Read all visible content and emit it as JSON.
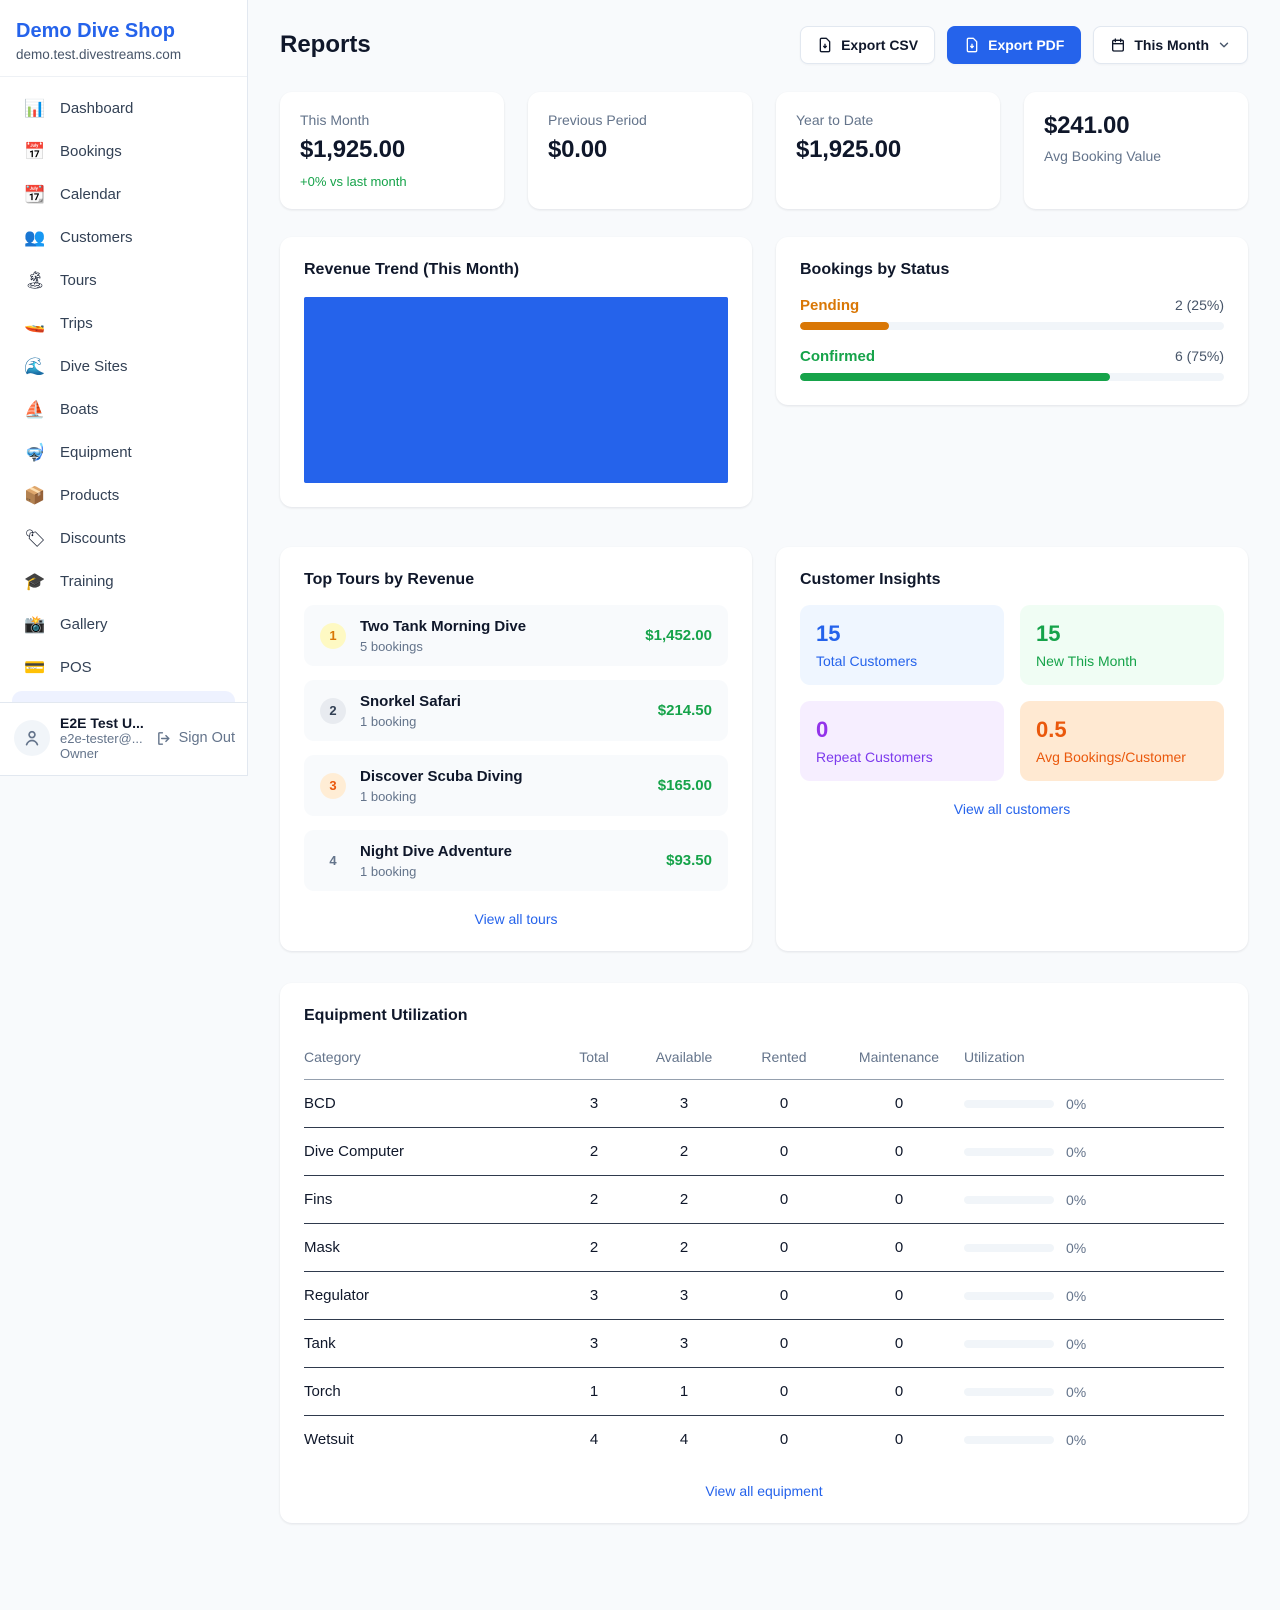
{
  "accent_color": "#2563eb",
  "sidebar": {
    "brand": {
      "name": "Demo Dive Shop",
      "domain": "demo.test.divestreams.com"
    },
    "nav": [
      {
        "icon": "📊",
        "icon_name": "bar-chart-icon",
        "label": "Dashboard"
      },
      {
        "icon": "📅",
        "icon_name": "calendar-date-icon",
        "label": "Bookings"
      },
      {
        "icon": "📆",
        "icon_name": "tear-off-calendar-icon",
        "label": "Calendar"
      },
      {
        "icon": "👥",
        "icon_name": "people-icon",
        "label": "Customers"
      },
      {
        "icon": "🏝",
        "icon_name": "island-icon",
        "label": "Tours"
      },
      {
        "icon": "🚤",
        "icon_name": "speedboat-icon",
        "label": "Trips"
      },
      {
        "icon": "🌊",
        "icon_name": "wave-icon",
        "label": "Dive Sites"
      },
      {
        "icon": "⛵",
        "icon_name": "sailboat-icon",
        "label": "Boats"
      },
      {
        "icon": "🤿",
        "icon_name": "diving-mask-icon",
        "label": "Equipment"
      },
      {
        "icon": "📦",
        "icon_name": "package-icon",
        "label": "Products"
      },
      {
        "icon": "🏷",
        "icon_name": "tag-icon",
        "label": "Discounts"
      },
      {
        "icon": "🎓",
        "icon_name": "graduation-cap-icon",
        "label": "Training"
      },
      {
        "icon": "📸",
        "icon_name": "camera-icon",
        "label": "Gallery"
      },
      {
        "icon": "💳",
        "icon_name": "credit-card-icon",
        "label": "POS"
      }
    ],
    "user": {
      "name": "E2E Test U...",
      "email": "e2e-tester@...",
      "role": "Owner",
      "sign_out_label": "Sign Out"
    }
  },
  "header": {
    "title": "Reports",
    "export_csv_label": "Export CSV",
    "export_pdf_label": "Export PDF",
    "period_label": "This Month"
  },
  "stats": [
    {
      "label": "This Month",
      "value": "$1,925.00",
      "delta": "+0% vs last month"
    },
    {
      "label": "Previous Period",
      "value": "$0.00"
    },
    {
      "label": "Year to Date",
      "value": "$1,925.00"
    },
    {
      "label": "Avg Booking Value",
      "value": "$241.00"
    }
  ],
  "revenue_trend": {
    "title": "Revenue Trend (This Month)"
  },
  "chart_data": {
    "type": "bar",
    "title": "Revenue Trend (This Month)",
    "categories": [
      "This Month"
    ],
    "values": [
      1925
    ],
    "bar_color": "#2563eb",
    "note": "single bar fills entire plot area, no axes or gridlines shown",
    "xlabel": "",
    "ylabel": ""
  },
  "bookings_by_status": {
    "title": "Bookings by Status",
    "rows": [
      {
        "label": "Pending",
        "value": "2 (25%)",
        "count": 2,
        "pct": 25,
        "bar_pct": 21,
        "color": "#d97706"
      },
      {
        "label": "Confirmed",
        "value": "6 (75%)",
        "count": 6,
        "pct": 75,
        "bar_pct": 73,
        "color": "#16a34a"
      }
    ]
  },
  "top_tours": {
    "title": "Top Tours by Revenue",
    "items": [
      {
        "rank": "1",
        "name": "Two Tank Morning Dive",
        "bookings": "5 bookings",
        "amount": "$1,452.00"
      },
      {
        "rank": "2",
        "name": "Snorkel Safari",
        "bookings": "1 booking",
        "amount": "$214.50"
      },
      {
        "rank": "3",
        "name": "Discover Scuba Diving",
        "bookings": "1 booking",
        "amount": "$165.00"
      },
      {
        "rank": "4",
        "name": "Night Dive Adventure",
        "bookings": "1 booking",
        "amount": "$93.50"
      }
    ],
    "view_all_label": "View all tours"
  },
  "customer_insights": {
    "title": "Customer Insights",
    "tiles": [
      {
        "value": "15",
        "label": "Total Customers",
        "color": "#2563eb"
      },
      {
        "value": "15",
        "label": "New This Month",
        "color": "#16a34a"
      },
      {
        "value": "0",
        "label": "Repeat Customers",
        "color": "#9333ea"
      },
      {
        "value": "0.5",
        "label": "Avg Bookings/Customer",
        "color": "#ea580c"
      }
    ],
    "view_all_label": "View all customers"
  },
  "equipment": {
    "title": "Equipment Utilization",
    "columns": [
      "Category",
      "Total",
      "Available",
      "Rented",
      "Maintenance",
      "Utilization"
    ],
    "rows": [
      {
        "category": "BCD",
        "total": "3",
        "available": "3",
        "rented": "0",
        "maintenance": "0",
        "utilization": "0%",
        "utilization_pct": 0
      },
      {
        "category": "Dive Computer",
        "total": "2",
        "available": "2",
        "rented": "0",
        "maintenance": "0",
        "utilization": "0%",
        "utilization_pct": 0
      },
      {
        "category": "Fins",
        "total": "2",
        "available": "2",
        "rented": "0",
        "maintenance": "0",
        "utilization": "0%",
        "utilization_pct": 0
      },
      {
        "category": "Mask",
        "total": "2",
        "available": "2",
        "rented": "0",
        "maintenance": "0",
        "utilization": "0%",
        "utilization_pct": 0
      },
      {
        "category": "Regulator",
        "total": "3",
        "available": "3",
        "rented": "0",
        "maintenance": "0",
        "utilization": "0%",
        "utilization_pct": 0
      },
      {
        "category": "Tank",
        "total": "3",
        "available": "3",
        "rented": "0",
        "maintenance": "0",
        "utilization": "0%",
        "utilization_pct": 0
      },
      {
        "category": "Torch",
        "total": "1",
        "available": "1",
        "rented": "0",
        "maintenance": "0",
        "utilization": "0%",
        "utilization_pct": 0
      },
      {
        "category": "Wetsuit",
        "total": "4",
        "available": "4",
        "rented": "0",
        "maintenance": "0",
        "utilization": "0%",
        "utilization_pct": 0
      }
    ],
    "view_all_label": "View all equipment"
  }
}
